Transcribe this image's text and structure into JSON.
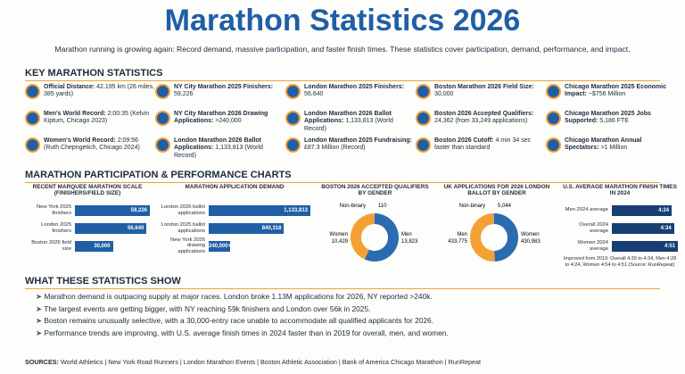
{
  "header": {
    "title": "Marathon Statistics 2026",
    "subtitle": "Marathon running is growing again: Record demand, massive participation, and faster finish times. These statistics cover participation, demand, performance, and impact."
  },
  "key_stats": {
    "heading": "KEY MARATHON STATISTICS",
    "items": [
      {
        "label": "Official Distance:",
        "value": "42.195 km (26 miles, 385 yards)"
      },
      {
        "label": "Men's World Record:",
        "value": "2:00:35 (Kelvin Kiptum, Chicago 2023)"
      },
      {
        "label": "Women's World Record:",
        "value": "2:09:56 (Ruth Chepngetich, Chicago 2024)"
      },
      {
        "label": "NY City Marathon 2025 Finishers:",
        "value": "59,226"
      },
      {
        "label": "NY City Marathon 2026 Drawing Applications:",
        "value": ">240,000"
      },
      {
        "label": "London Marathon 2026 Ballot Applications:",
        "value": "1,133,813 (World Record)"
      },
      {
        "label": "London Marathon 2025 Finishers:",
        "value": "56,640"
      },
      {
        "label": "London Marathon 2026 Ballot Applications:",
        "value": "1,133,813 (World Record)"
      },
      {
        "label": "London Marathon 2025 Fundraising:",
        "value": "£87.3 Million (Record)"
      },
      {
        "label": "Boston Marathon 2026 Field Size:",
        "value": "30,000"
      },
      {
        "label": "Boston 2026 Accepted Qualifiers:",
        "value": "24,362 (from 33,249 applications)"
      },
      {
        "label": "Boston 2026 Cutoff:",
        "value": "4 min 34 sec faster than standard"
      },
      {
        "label": "Chicago Marathon 2025 Economic Impact:",
        "value": "~$756 Million"
      },
      {
        "label": "Chicago Marathon 2025 Jobs Supported:",
        "value": "5,186 FTE"
      },
      {
        "label": "Chicago Marathon Annual Spectators:",
        "value": ">1 Million"
      }
    ]
  },
  "charts_heading": "MARATHON PARTICIPATION & PERFORMANCE CHARTS",
  "chart_data": [
    {
      "type": "bar",
      "title": "RECENT MARQUEE MARATHON SCALE (FINISHERS/FIELD SIZE)",
      "categories": [
        "New York 2025 finishers",
        "London 2025 finishers",
        "Boston 2026 field size"
      ],
      "values": [
        59226,
        56640,
        30000
      ],
      "value_labels": [
        "59,226",
        "56,640",
        "30,000"
      ],
      "color": "#1f5fa6"
    },
    {
      "type": "bar",
      "title": "MARATHON APPLICATION DEMAND",
      "categories": [
        "London 2026 ballot applications",
        "London 2025 ballot applications",
        "New York 2026 drawing applications"
      ],
      "values": [
        1133813,
        840318,
        240000
      ],
      "value_labels": [
        "1,133,813",
        "840,318",
        "240,000+"
      ],
      "color": "#1f5fa6"
    },
    {
      "type": "donut",
      "title": "BOSTON 2026 ACCEPTED QUALIFIERS BY GENDER",
      "categories": [
        "Non-binary",
        "Women",
        "Men"
      ],
      "values": [
        110,
        10429,
        13823
      ],
      "value_labels": [
        "110",
        "10,429",
        "13,823"
      ],
      "colors": [
        "#9aa5b1",
        "#f5a033",
        "#2b6cb0"
      ]
    },
    {
      "type": "donut",
      "title": "UK APPLICATIONS FOR 2026 LONDON BALLOT BY GENDER",
      "categories": [
        "Non-binary",
        "Men",
        "Women"
      ],
      "values": [
        5044,
        433775,
        430983
      ],
      "value_labels": [
        "5,044",
        "433,775",
        "430,983"
      ],
      "colors": [
        "#9aa5b1",
        "#f5a033",
        "#2b6cb0"
      ]
    },
    {
      "type": "bar",
      "title": "U.S. AVERAGE MARATHON FINISH TIMES IN 2024",
      "categories": [
        "Men 2024 average",
        "Overall 2024 average",
        "Women 2024 average"
      ],
      "values": [
        264,
        274,
        291
      ],
      "value_labels": [
        "4:24",
        "4:34",
        "4:51"
      ],
      "color": "#173f73",
      "note": "Improved from 2019: Overall 4:39 to 4:34, Men 4:28 to 4:24, Women 4:54 to 4:51 (Source: RunRepeat)"
    }
  ],
  "findings": {
    "heading": "WHAT THESE STATISTICS SHOW",
    "items": [
      "Marathon demand is outpacing supply at major races. London broke 1.13M applications for 2026, NY reported >240k.",
      "The largest events are getting bigger, with NY reaching 59k finishers and London over 56k in 2025.",
      "Boston remains unusually selective, with a 30,000-entry race unable to accommodate all qualified applicants for 2026.",
      "Performance trends are improving, with U.S. average finish times in 2024 faster than in 2019 for overall, men, and women."
    ]
  },
  "sources": {
    "label": "SOURCES:",
    "text": "World Athletics | New York Road Runners | London Marathon Events | Boston Athletic Association | Bank of America Chicago Marathon | RunRepeat"
  }
}
